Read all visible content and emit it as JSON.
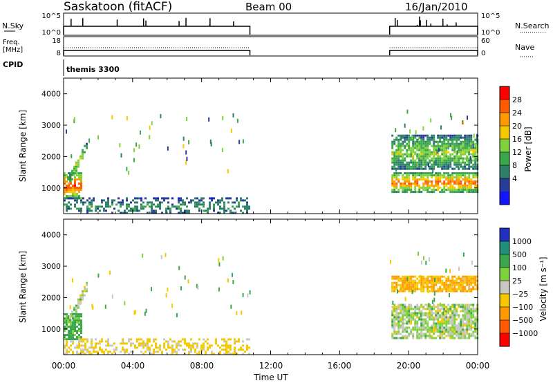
{
  "header": {
    "station": "Saskatoon (fitACF)",
    "beam": "Beam 00",
    "date": "16/Jan/2010"
  },
  "noise_panel": {
    "left_label": "N.Sky",
    "left_ticks": [
      "10^5",
      "10^0"
    ],
    "right_label": "N.Search",
    "right_ticks": [
      "10^5",
      "10^0"
    ]
  },
  "freq_panel": {
    "left_label_line1": "Freq.",
    "left_label_line2": "[MHz]",
    "left_ticks": [
      "18",
      "8"
    ],
    "right_label": "Nave",
    "right_ticks": [
      "60",
      "0"
    ]
  },
  "cpid_panel": {
    "label": "CPID",
    "mode": "themis 3300"
  },
  "range_axis": {
    "label": "Slant Range [km]",
    "ticks": [
      "4000",
      "3000",
      "2000",
      "1000"
    ]
  },
  "time_axis": {
    "label": "Time UT",
    "ticks": [
      "00:00",
      "04:00",
      "08:00",
      "12:00",
      "16:00",
      "20:00",
      "00:00"
    ]
  },
  "power_scale": {
    "label": "Power [dB]",
    "ticks": [
      "28",
      "24",
      "20",
      "16",
      "12",
      "8",
      "4"
    ],
    "colors": [
      "#ff0000",
      "#ff5a00",
      "#ff9a00",
      "#f5c800",
      "#7fd23c",
      "#3aa84a",
      "#2e7f6a",
      "#283c9a",
      "#1414ff"
    ]
  },
  "velocity_scale": {
    "label": "Velocity [m s⁻¹]",
    "ticks": [
      "1000",
      "500",
      "100",
      "25",
      "−25",
      "−100",
      "−500",
      "−1000"
    ],
    "colors": [
      "#2030c0",
      "#1f8f7a",
      "#3aa84a",
      "#7fd23c",
      "#c8c8c0",
      "#f5c800",
      "#ff9a00",
      "#ff5a00",
      "#ff0000"
    ]
  },
  "chart_data": {
    "type": "heatmap",
    "x_range_hours": [
      0,
      24
    ],
    "y_range_km": [
      180,
      4500
    ],
    "data_coverage_hours": [
      [
        0,
        10.8
      ],
      [
        18.9,
        24
      ]
    ],
    "power_panel": {
      "echo_regions": [
        {
          "name": "near-range echoes",
          "t": [
            0,
            1.0
          ],
          "range_km": [
            700,
            1500
          ],
          "peak_db": 28
        },
        {
          "name": "slanted echo band",
          "t": [
            0.2,
            1.4
          ],
          "range_km": [
            1200,
            2500
          ],
          "peak_db": 18
        },
        {
          "name": "ground scatter strip",
          "t": [
            0,
            10.8
          ],
          "range_km": [
            180,
            700
          ],
          "peak_db": 10
        },
        {
          "name": "evening echo band",
          "t": [
            19.0,
            24
          ],
          "range_km": [
            900,
            1500
          ],
          "peak_db": 26
        },
        {
          "name": "upper evening band",
          "t": [
            19.0,
            24
          ],
          "range_km": [
            1600,
            2700
          ],
          "peak_db": 16
        }
      ]
    },
    "velocity_panel": {
      "echo_regions": [
        {
          "name": "near-range echoes",
          "t": [
            0,
            1.0
          ],
          "range_km": [
            700,
            1500
          ],
          "velocity_ms": 100
        },
        {
          "name": "slanted echo band",
          "t": [
            0.2,
            1.4
          ],
          "range_km": [
            1200,
            2500
          ],
          "velocity_ms": 0
        },
        {
          "name": "ground scatter strip",
          "t": [
            0,
            10.8
          ],
          "range_km": [
            180,
            700
          ],
          "velocity_ms": -100
        },
        {
          "name": "evening echo band",
          "t": [
            19.0,
            24
          ],
          "range_km": [
            700,
            1800
          ],
          "velocity_ms": 0
        },
        {
          "name": "upper evening band",
          "t": [
            19.0,
            24
          ],
          "range_km": [
            2200,
            2700
          ],
          "velocity_ms": -300
        }
      ]
    }
  }
}
